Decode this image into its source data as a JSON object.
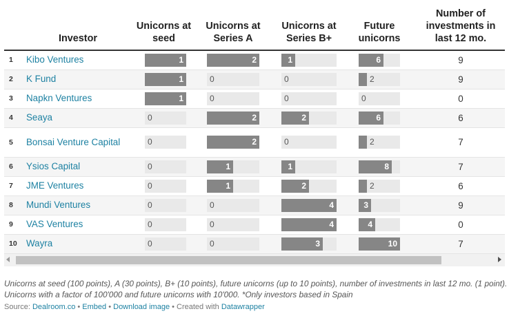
{
  "chart_data": {
    "type": "table",
    "columns": {
      "investor": "Investor",
      "seed": "Unicorns at seed",
      "series_a": "Unicorns at Series A",
      "series_b": "Unicorns at Series B+",
      "future": "Future unicorns",
      "investments": "Number of investments in last 12 mo."
    },
    "ranges": {
      "seed": [
        0,
        1
      ],
      "series_a": [
        0,
        2
      ],
      "series_b": [
        0,
        4
      ],
      "future": [
        0,
        10
      ]
    },
    "bar_color": "#868686",
    "link_color": "#1d81a2",
    "rows": [
      {
        "rank": "1",
        "investor": "Kibo Ventures",
        "seed": 1,
        "series_a": 2,
        "series_b": 1,
        "future": 6,
        "investments": 9
      },
      {
        "rank": "2",
        "investor": "K Fund",
        "seed": 1,
        "series_a": 0,
        "series_b": 0,
        "future": 2,
        "investments": 9
      },
      {
        "rank": "3",
        "investor": "Napkn Ventures",
        "seed": 1,
        "series_a": 0,
        "series_b": 0,
        "future": 0,
        "investments": 0
      },
      {
        "rank": "4",
        "investor": "Seaya",
        "seed": 0,
        "series_a": 2,
        "series_b": 2,
        "future": 6,
        "investments": 6
      },
      {
        "rank": "5",
        "investor": "Bonsai Venture Capital",
        "seed": 0,
        "series_a": 2,
        "series_b": 0,
        "future": 2,
        "investments": 7
      },
      {
        "rank": "6",
        "investor": "Ysios Capital",
        "seed": 0,
        "series_a": 1,
        "series_b": 1,
        "future": 8,
        "investments": 7
      },
      {
        "rank": "7",
        "investor": "JME Ventures",
        "seed": 0,
        "series_a": 1,
        "series_b": 2,
        "future": 2,
        "investments": 6
      },
      {
        "rank": "8",
        "investor": "Mundi Ventures",
        "seed": 0,
        "series_a": 0,
        "series_b": 4,
        "future": 3,
        "investments": 9
      },
      {
        "rank": "9",
        "investor": "VAS Ventures",
        "seed": 0,
        "series_a": 0,
        "series_b": 4,
        "future": 4,
        "investments": 0
      },
      {
        "rank": "10",
        "investor": "Wayra",
        "seed": 0,
        "series_a": 0,
        "series_b": 3,
        "future": 10,
        "investments": 7
      }
    ]
  },
  "notes": "Unicorns at seed (100 points), A (30 points), B+ (10 points), future unicorns (up to 10 points), number of investments in last 12 mo. (1 point). Unicorns with a factor of 100'000 and future unicorns with 10'000. *Only investors based in Spain",
  "source": {
    "prefix": "Source: ",
    "name": "Dealroom.co",
    "sep": " • ",
    "embed": "Embed",
    "download": "Download image",
    "created": "Created with ",
    "tool": "Datawrapper"
  }
}
